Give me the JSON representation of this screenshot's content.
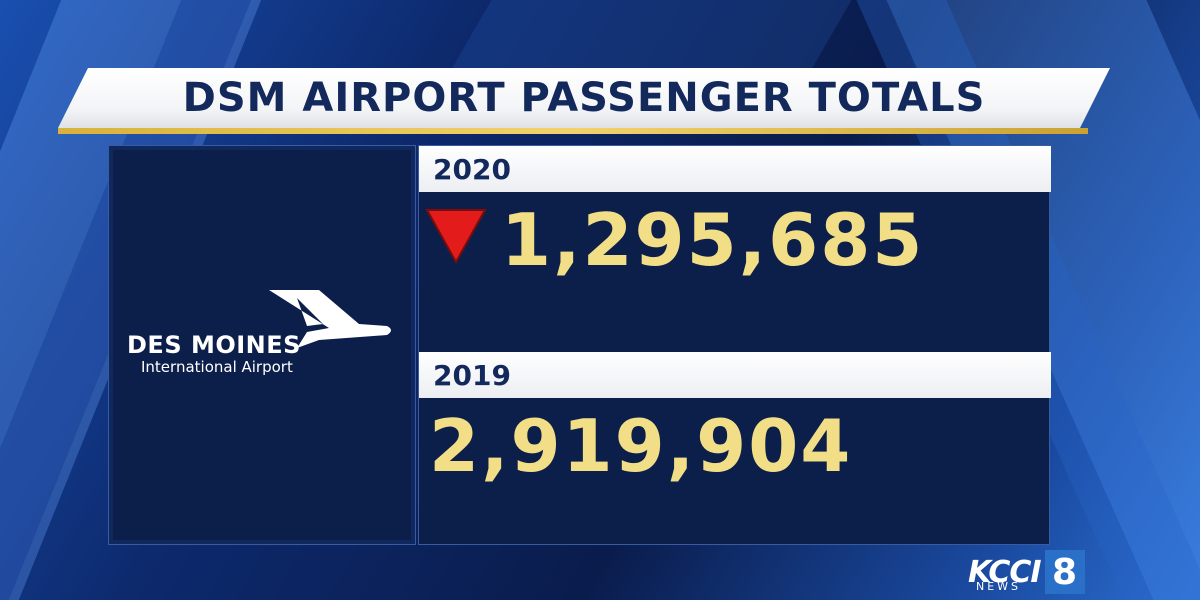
{
  "title": "DSM AIRPORT PASSENGER TOTALS",
  "logo": {
    "name": "DES MOINES",
    "subtitle": "International Airport"
  },
  "entries": [
    {
      "year": "2020",
      "value": "1,295,685",
      "trend": "down"
    },
    {
      "year": "2019",
      "value": "2,919,904"
    }
  ],
  "network": {
    "letters": "KCCI",
    "sub": "NEWS",
    "channel": "8"
  },
  "colors": {
    "background": "#0b1f52",
    "title_text": "#13295c",
    "value_text": "#f1de86",
    "accent_gold": "#d8b23a",
    "down_arrow": "#e31b1b",
    "network_badge": "#2a6fc8"
  },
  "icons": [
    "down-triangle-icon",
    "airplane-icon"
  ]
}
